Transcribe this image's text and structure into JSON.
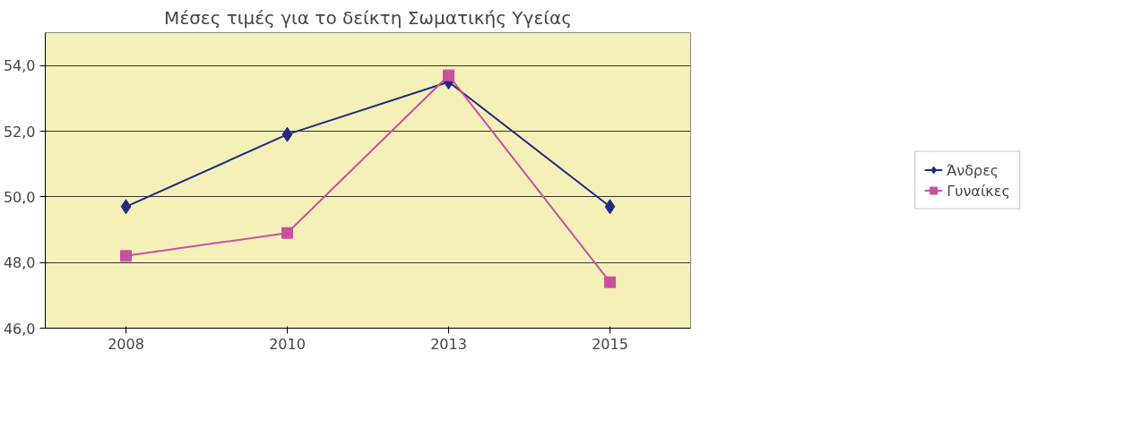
{
  "chart_data": {
    "type": "line",
    "title": "Μέσες τιμές για το δείκτη Σωματικής Υγείας",
    "categories": [
      "2008",
      "2010",
      "2013",
      "2015"
    ],
    "series": [
      {
        "name": "Άνδρες",
        "color": "#1f2a80",
        "values": [
          49.7,
          51.9,
          53.5,
          49.7
        ],
        "marker": "diamond"
      },
      {
        "name": "Γυναίκες",
        "color": "#c8509e",
        "values": [
          48.2,
          48.9,
          53.7,
          47.4
        ],
        "marker": "square"
      }
    ],
    "ylim": [
      46,
      55
    ],
    "yticks": [
      {
        "value": 46,
        "label": "46,0"
      },
      {
        "value": 48,
        "label": "48,0"
      },
      {
        "value": 50,
        "label": "50,0"
      },
      {
        "value": 52,
        "label": "52,0"
      },
      {
        "value": 54,
        "label": "54,0"
      }
    ],
    "grid": "y",
    "legend": "right",
    "line_style": "solid"
  }
}
